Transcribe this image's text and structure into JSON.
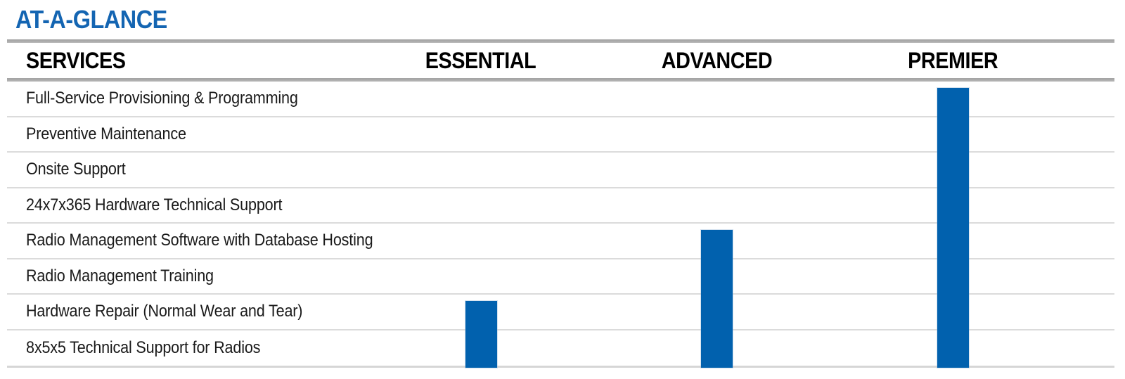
{
  "title": "AT-A-GLANCE",
  "chart_data": {
    "type": "table",
    "title": "AT-A-GLANCE",
    "columns": [
      "SERVICES",
      "ESSENTIAL",
      "ADVANCED",
      "PREMIER"
    ],
    "rows": [
      {
        "service": "Full-Service Provisioning & Programming",
        "essential": false,
        "advanced": false,
        "premier": true
      },
      {
        "service": "Preventive Maintenance",
        "essential": false,
        "advanced": false,
        "premier": true
      },
      {
        "service": "Onsite Support",
        "essential": false,
        "advanced": false,
        "premier": true
      },
      {
        "service": "24x7x365 Hardware Technical Support",
        "essential": false,
        "advanced": false,
        "premier": true
      },
      {
        "service": "Radio Management Software with Database Hosting",
        "essential": false,
        "advanced": true,
        "premier": true
      },
      {
        "service": "Radio Management Training",
        "essential": false,
        "advanced": true,
        "premier": true
      },
      {
        "service": "Hardware Repair (Normal Wear and Tear)",
        "essential": true,
        "advanced": true,
        "premier": true
      },
      {
        "service": "8x5x5 Technical Support for Radios",
        "essential": true,
        "advanced": true,
        "premier": true
      }
    ],
    "legend_position": "none",
    "encoding_note": "A solid blue vertical bar under a tier column spans every service row included in that tier; each bar runs from its first included service down to the bottom of the table"
  },
  "colors": {
    "title_blue": "#1465B2",
    "bar_blue": "#0161AE",
    "rule_gray": "#ACACAC",
    "row_separator_gray": "#DBDBDB",
    "bottom_rule_gray": "#D6D6D6",
    "text_black": "#1A1A1A"
  }
}
